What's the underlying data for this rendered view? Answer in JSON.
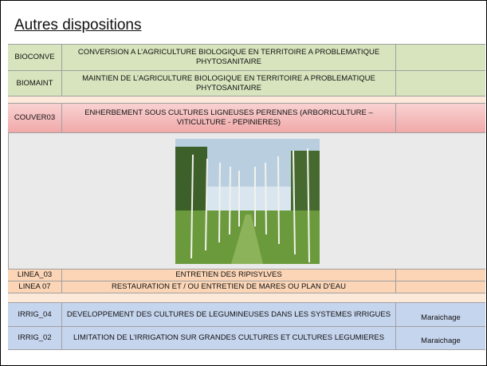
{
  "header": {
    "title": "Autres dispositions"
  },
  "table": {
    "rows": [
      {
        "code": "BIOCONVE",
        "description": "CONVERSION A L’AGRICULTURE BIOLOGIQUE EN TERRITOIRE A PROBLEMATIQUE PHYTOSANITAIRE"
      },
      {
        "code": "BIOMAINT",
        "description": "MAINTIEN DE L’AGRICULTURE BIOLOGIQUE EN TERRITOIRE A PROBLEMATIQUE PHYTOSANITAIRE"
      },
      {
        "code": "COUVER03",
        "description": "ENHERBEMENT SOUS CULTURES LIGNEUSES PERENNES (ARBORICULTURE – VITICULTURE - PEPINIERES)"
      },
      {
        "code": "LINEA_03",
        "description": "ENTRETIEN DES RIPISYLVES"
      },
      {
        "code": "LINEA 07",
        "description": "RESTAURATION ET / OU ENTRETIEN DE MARES OU PLAN D’EAU"
      },
      {
        "code": "IRRIG_04",
        "description": "DEVELOPPEMENT DES CULTURES DE LEGUMINEUSES DANS LES SYSTEMES IRRIGUES",
        "note": "Maraichage"
      },
      {
        "code": "IRRIG_02",
        "description": "LIMITATION DE L’IRRIGATION SUR GRANDES CULTURES ET CULTURES LEGUMIERES",
        "note": "Maraichage"
      }
    ]
  }
}
